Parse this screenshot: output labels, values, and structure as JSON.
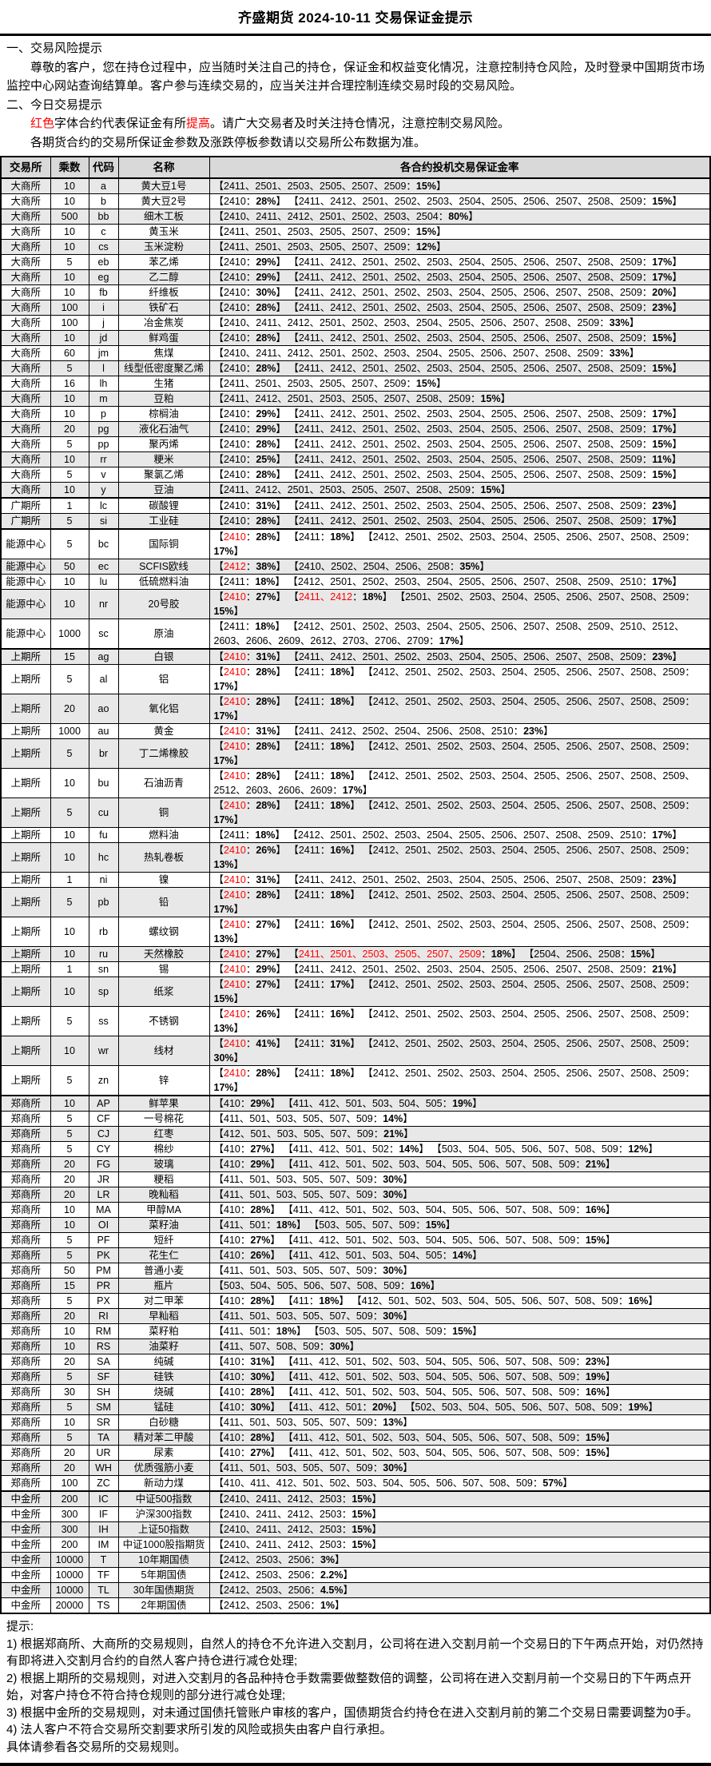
{
  "title": "齐盛期货 2024-10-11 交易保证金提示",
  "colors": {
    "red_highlight": "#FF0000",
    "header_bg": "#D9D9D9",
    "stripe_bg": "#E8E8E8"
  },
  "sections": {
    "s1_head": "一、交易风险提示",
    "s1_p1": "尊敬的客户，您在持仓过程中，应当随时关注自己的持仓，保证金和权益变化情况，注意控制持仓风险，及时登录中国期货市场监控中心网站查询结算单。客户参与连续交易的，应当关注并合理控制连续交易时段的交易风险。",
    "s2_head": "二、今日交易提示",
    "s2_p1": "{r}红色{/r}字体合约代表保证金有所{r}提高{/r}。请广大交易者及时关注持仓情况，注意控制交易风险。",
    "s2_p2": "各期货合约的交易所保证金参数及涨跌停板参数请以交易所公布数据为准。"
  },
  "table": {
    "headers": [
      "交易所",
      "乘数",
      "代码",
      "名称",
      "各合约投机交易保证金率"
    ],
    "rows": [
      {
        "exchange": "大商所",
        "multiplier": "10",
        "code": "a",
        "name": "黄大豆1号",
        "margin": "【2411、2501、2503、2505、2507、2509：{b}15%{/b}】"
      },
      {
        "exchange": "大商所",
        "multiplier": "10",
        "code": "b",
        "name": "黄大豆2号",
        "margin": "【2410：{b}28%{/b}】 【2411、2412、2501、2502、2503、2504、2505、2506、2507、2508、2509：{b}15%{/b}】"
      },
      {
        "exchange": "大商所",
        "multiplier": "500",
        "code": "bb",
        "name": "细木工板",
        "margin": "【2410、2411、2412、2501、2502、2503、2504：{b}80%{/b}】"
      },
      {
        "exchange": "大商所",
        "multiplier": "10",
        "code": "c",
        "name": "黄玉米",
        "margin": "【2411、2501、2503、2505、2507、2509：{b}15%{/b}】"
      },
      {
        "exchange": "大商所",
        "multiplier": "10",
        "code": "cs",
        "name": "玉米淀粉",
        "margin": "【2411、2501、2503、2505、2507、2509：{b}12%{/b}】"
      },
      {
        "exchange": "大商所",
        "multiplier": "5",
        "code": "eb",
        "name": "苯乙烯",
        "margin": "【2410：{b}29%{/b}】 【2411、2412、2501、2502、2503、2504、2505、2506、2507、2508、2509：{b}17%{/b}】"
      },
      {
        "exchange": "大商所",
        "multiplier": "10",
        "code": "eg",
        "name": "乙二醇",
        "margin": "【2410：{b}29%{/b}】 【2411、2412、2501、2502、2503、2504、2505、2506、2507、2508、2509：{b}17%{/b}】"
      },
      {
        "exchange": "大商所",
        "multiplier": "10",
        "code": "fb",
        "name": "纤维板",
        "margin": "【2410：{b}30%{/b}】 【2411、2412、2501、2502、2503、2504、2505、2506、2507、2508、2509：{b}20%{/b}】"
      },
      {
        "exchange": "大商所",
        "multiplier": "100",
        "code": "i",
        "name": "铁矿石",
        "margin": "【2410：{b}28%{/b}】 【2411、2412、2501、2502、2503、2504、2505、2506、2507、2508、2509：{b}23%{/b}】"
      },
      {
        "exchange": "大商所",
        "multiplier": "100",
        "code": "j",
        "name": "冶金焦炭",
        "margin": "【2410、2411、2412、2501、2502、2503、2504、2505、2506、2507、2508、2509：{b}33%{/b}】"
      },
      {
        "exchange": "大商所",
        "multiplier": "10",
        "code": "jd",
        "name": "鲜鸡蛋",
        "margin": "【2410：{b}28%{/b}】 【2411、2412、2501、2502、2503、2504、2505、2506、2507、2508、2509：{b}15%{/b}】"
      },
      {
        "exchange": "大商所",
        "multiplier": "60",
        "code": "jm",
        "name": "焦煤",
        "margin": "【2410、2411、2412、2501、2502、2503、2504、2505、2506、2507、2508、2509：{b}33%{/b}】"
      },
      {
        "exchange": "大商所",
        "multiplier": "5",
        "code": "l",
        "name": "线型低密度聚乙烯",
        "margin": "【2410：{b}28%{/b}】 【2411、2412、2501、2502、2503、2504、2505、2506、2507、2508、2509：{b}15%{/b}】"
      },
      {
        "exchange": "大商所",
        "multiplier": "16",
        "code": "lh",
        "name": "生猪",
        "margin": "【2411、2501、2503、2505、2507、2509：{b}15%{/b}】"
      },
      {
        "exchange": "大商所",
        "multiplier": "10",
        "code": "m",
        "name": "豆粕",
        "margin": "【2411、2412、2501、2503、2505、2507、2508、2509：{b}15%{/b}】"
      },
      {
        "exchange": "大商所",
        "multiplier": "10",
        "code": "p",
        "name": "棕榈油",
        "margin": "【2410：{b}29%{/b}】 【2411、2412、2501、2502、2503、2504、2505、2506、2507、2508、2509：{b}17%{/b}】"
      },
      {
        "exchange": "大商所",
        "multiplier": "20",
        "code": "pg",
        "name": "液化石油气",
        "margin": "【2410：{b}29%{/b}】 【2411、2412、2501、2502、2503、2504、2505、2506、2507、2508、2509：{b}17%{/b}】"
      },
      {
        "exchange": "大商所",
        "multiplier": "5",
        "code": "pp",
        "name": "聚丙烯",
        "margin": "【2410：{b}28%{/b}】 【2411、2412、2501、2502、2503、2504、2505、2506、2507、2508、2509：{b}15%{/b}】"
      },
      {
        "exchange": "大商所",
        "multiplier": "10",
        "code": "rr",
        "name": "粳米",
        "margin": "【2410：{b}25%{/b}】 【2411、2412、2501、2502、2503、2504、2505、2506、2507、2508、2509：{b}11%{/b}】"
      },
      {
        "exchange": "大商所",
        "multiplier": "5",
        "code": "v",
        "name": "聚氯乙烯",
        "margin": "【2410：{b}28%{/b}】 【2411、2412、2501、2502、2503、2504、2505、2506、2507、2508、2509：{b}15%{/b}】"
      },
      {
        "exchange": "大商所",
        "multiplier": "10",
        "code": "y",
        "name": "豆油",
        "margin": "【2411、2412、2501、2503、2505、2507、2508、2509：{b}15%{/b}】"
      },
      {
        "exchange": "广期所",
        "multiplier": "1",
        "code": "lc",
        "name": "碳酸锂",
        "margin": "【2410：{b}31%{/b}】 【2411、2412、2501、2502、2503、2504、2505、2506、2507、2508、2509：{b}23%{/b}】"
      },
      {
        "exchange": "广期所",
        "multiplier": "5",
        "code": "si",
        "name": "工业硅",
        "margin": "【2410：{b}28%{/b}】 【2411、2412、2501、2502、2503、2504、2505、2506、2507、2508、2509：{b}17%{/b}】"
      },
      {
        "exchange": "能源中心",
        "multiplier": "5",
        "code": "bc",
        "name": "国际铜",
        "margin": "【{r}2410{/r}：{b}28%{/b}】 【2411：{b}18%{/b}】 【2412、2501、2502、2503、2504、2505、2506、2507、2508、2509：{b}17%{/b}】"
      },
      {
        "exchange": "能源中心",
        "multiplier": "50",
        "code": "ec",
        "name": "SCFIS欧线",
        "margin": "【{r}2412{/r}：{b}38%{/b}】 【2410、2502、2504、2506、2508：{b}35%{/b}】"
      },
      {
        "exchange": "能源中心",
        "multiplier": "10",
        "code": "lu",
        "name": "低硫燃料油",
        "margin": "【2411：{b}18%{/b}】 【2412、2501、2502、2503、2504、2505、2506、2507、2508、2509、2510：{b}17%{/b}】"
      },
      {
        "exchange": "能源中心",
        "multiplier": "10",
        "code": "nr",
        "name": "20号胶",
        "margin": "【{r}2410{/r}：{b}27%{/b}】 【{r}2411、2412{/r}：{b}18%{/b}】 【2501、2502、2503、2504、2505、2506、2507、2508、2509：{b}15%{/b}】"
      },
      {
        "exchange": "能源中心",
        "multiplier": "1000",
        "code": "sc",
        "name": "原油",
        "margin": "【2411：{b}18%{/b}】 【2412、2501、2502、2503、2504、2505、2506、2507、2508、2509、2510、2512、2603、2606、2609、2612、2703、2706、2709：{b}17%{/b}】"
      },
      {
        "exchange": "上期所",
        "multiplier": "15",
        "code": "ag",
        "name": "白银",
        "margin": "【{r}2410{/r}：{b}31%{/b}】 【2411、2412、2501、2502、2503、2504、2505、2506、2507、2508、2509：{b}23%{/b}】"
      },
      {
        "exchange": "上期所",
        "multiplier": "5",
        "code": "al",
        "name": "铝",
        "margin": "【{r}2410{/r}：{b}28%{/b}】 【2411：{b}18%{/b}】 【2412、2501、2502、2503、2504、2505、2506、2507、2508、2509：{b}17%{/b}】"
      },
      {
        "exchange": "上期所",
        "multiplier": "20",
        "code": "ao",
        "name": "氧化铝",
        "margin": "【{r}2410{/r}：{b}28%{/b}】 【2411：{b}18%{/b}】 【2412、2501、2502、2503、2504、2505、2506、2507、2508、2509：{b}17%{/b}】"
      },
      {
        "exchange": "上期所",
        "multiplier": "1000",
        "code": "au",
        "name": "黄金",
        "margin": "【{r}2410{/r}：{b}31%{/b}】 【2411、2412、2502、2504、2506、2508、2510：{b}23%{/b}】"
      },
      {
        "exchange": "上期所",
        "multiplier": "5",
        "code": "br",
        "name": "丁二烯橡胶",
        "margin": "【{r}2410{/r}：{b}28%{/b}】 【2411：{b}18%{/b}】 【2412、2501、2502、2503、2504、2505、2506、2507、2508、2509：{b}17%{/b}】"
      },
      {
        "exchange": "上期所",
        "multiplier": "10",
        "code": "bu",
        "name": "石油沥青",
        "margin": "【{r}2410{/r}：{b}28%{/b}】 【2411：{b}18%{/b}】 【2412、2501、2502、2503、2504、2505、2506、2507、2508、2509、2512、2603、2606、2609：{b}17%{/b}】"
      },
      {
        "exchange": "上期所",
        "multiplier": "5",
        "code": "cu",
        "name": "铜",
        "margin": "【{r}2410{/r}：{b}28%{/b}】 【2411：{b}18%{/b}】 【2412、2501、2502、2503、2504、2505、2506、2507、2508、2509：{b}17%{/b}】"
      },
      {
        "exchange": "上期所",
        "multiplier": "10",
        "code": "fu",
        "name": "燃料油",
        "margin": "【2411：{b}18%{/b}】 【2412、2501、2502、2503、2504、2505、2506、2507、2508、2509、2510：{b}17%{/b}】"
      },
      {
        "exchange": "上期所",
        "multiplier": "10",
        "code": "hc",
        "name": "热轧卷板",
        "margin": "【{r}2410{/r}：{b}26%{/b}】 【2411：{b}16%{/b}】 【2412、2501、2502、2503、2504、2505、2506、2507、2508、2509：{b}13%{/b}】"
      },
      {
        "exchange": "上期所",
        "multiplier": "1",
        "code": "ni",
        "name": "镍",
        "margin": "【{r}2410{/r}：{b}31%{/b}】 【2411、2412、2501、2502、2503、2504、2505、2506、2507、2508、2509：{b}23%{/b}】"
      },
      {
        "exchange": "上期所",
        "multiplier": "5",
        "code": "pb",
        "name": "铅",
        "margin": "【{r}2410{/r}：{b}28%{/b}】 【2411：{b}18%{/b}】 【2412、2501、2502、2503、2504、2505、2506、2507、2508、2509：{b}17%{/b}】"
      },
      {
        "exchange": "上期所",
        "multiplier": "10",
        "code": "rb",
        "name": "螺纹钢",
        "margin": "【{r}2410{/r}：{b}27%{/b}】 【2411：{b}16%{/b}】 【2412、2501、2502、2503、2504、2505、2506、2507、2508、2509：{b}13%{/b}】"
      },
      {
        "exchange": "上期所",
        "multiplier": "10",
        "code": "ru",
        "name": "天然橡胶",
        "margin": "【{r}2410{/r}：{b}27%{/b}】 【{r}2411、2501、2503、2505、2507、2509{/r}：{b}18%{/b}】 【2504、2506、2508：{b}15%{/b}】"
      },
      {
        "exchange": "上期所",
        "multiplier": "1",
        "code": "sn",
        "name": "锡",
        "margin": "【{r}2410{/r}：{b}29%{/b}】 【2411、2412、2501、2502、2503、2504、2505、2506、2507、2508、2509：{b}21%{/b}】"
      },
      {
        "exchange": "上期所",
        "multiplier": "10",
        "code": "sp",
        "name": "纸浆",
        "margin": "【{r}2410{/r}：{b}27%{/b}】 【2411：{b}17%{/b}】 【2412、2501、2502、2503、2504、2505、2506、2507、2508、2509：{b}15%{/b}】"
      },
      {
        "exchange": "上期所",
        "multiplier": "5",
        "code": "ss",
        "name": "不锈钢",
        "margin": "【{r}2410{/r}：{b}26%{/b}】 【2411：{b}16%{/b}】 【2412、2501、2502、2503、2504、2505、2506、2507、2508、2509：{b}13%{/b}】"
      },
      {
        "exchange": "上期所",
        "multiplier": "10",
        "code": "wr",
        "name": "线材",
        "margin": "【{r}2410{/r}：{b}41%{/b}】 【2411：{b}31%{/b}】 【2412、2501、2502、2503、2504、2505、2506、2507、2508、2509：{b}30%{/b}】"
      },
      {
        "exchange": "上期所",
        "multiplier": "5",
        "code": "zn",
        "name": "锌",
        "margin": "【{r}2410{/r}：{b}28%{/b}】 【2411：{b}18%{/b}】 【2412、2501、2502、2503、2504、2505、2506、2507、2508、2509：{b}17%{/b}】"
      },
      {
        "exchange": "郑商所",
        "multiplier": "10",
        "code": "AP",
        "name": "鲜苹果",
        "margin": "【410：{b}29%{/b}】 【411、412、501、503、504、505：{b}19%{/b}】"
      },
      {
        "exchange": "郑商所",
        "multiplier": "5",
        "code": "CF",
        "name": "一号棉花",
        "margin": "【411、501、503、505、507、509：{b}14%{/b}】"
      },
      {
        "exchange": "郑商所",
        "multiplier": "5",
        "code": "CJ",
        "name": "红枣",
        "margin": "【412、501、503、505、507、509：{b}21%{/b}】"
      },
      {
        "exchange": "郑商所",
        "multiplier": "5",
        "code": "CY",
        "name": "棉纱",
        "margin": "【410：{b}27%{/b}】 【411、412、501、502：{b}14%{/b}】 【503、504、505、506、507、508、509：{b}12%{/b}】"
      },
      {
        "exchange": "郑商所",
        "multiplier": "20",
        "code": "FG",
        "name": "玻璃",
        "margin": "【410：{b}29%{/b}】 【411、412、501、502、503、504、505、506、507、508、509：{b}21%{/b}】"
      },
      {
        "exchange": "郑商所",
        "multiplier": "20",
        "code": "JR",
        "name": "粳稻",
        "margin": "【411、501、503、505、507、509：{b}30%{/b}】"
      },
      {
        "exchange": "郑商所",
        "multiplier": "20",
        "code": "LR",
        "name": "晚籼稻",
        "margin": "【411、501、503、505、507、509：{b}30%{/b}】"
      },
      {
        "exchange": "郑商所",
        "multiplier": "10",
        "code": "MA",
        "name": "甲醇MA",
        "margin": "【410：{b}28%{/b}】 【411、412、501、502、503、504、505、506、507、508、509：{b}16%{/b}】"
      },
      {
        "exchange": "郑商所",
        "multiplier": "10",
        "code": "OI",
        "name": "菜籽油",
        "margin": "【411、501：{b}18%{/b}】 【503、505、507、509：{b}15%{/b}】"
      },
      {
        "exchange": "郑商所",
        "multiplier": "5",
        "code": "PF",
        "name": "短纤",
        "margin": "【410：{b}27%{/b}】 【411、412、501、502、503、504、505、506、507、508、509：{b}15%{/b}】"
      },
      {
        "exchange": "郑商所",
        "multiplier": "5",
        "code": "PK",
        "name": "花生仁",
        "margin": "【410：{b}26%{/b}】 【411、412、501、503、504、505：{b}14%{/b}】"
      },
      {
        "exchange": "郑商所",
        "multiplier": "50",
        "code": "PM",
        "name": "普通小麦",
        "margin": "【411、501、503、505、507、509：{b}30%{/b}】"
      },
      {
        "exchange": "郑商所",
        "multiplier": "15",
        "code": "PR",
        "name": "瓶片",
        "margin": "【503、504、505、506、507、508、509：{b}16%{/b}】"
      },
      {
        "exchange": "郑商所",
        "multiplier": "5",
        "code": "PX",
        "name": "对二甲苯",
        "margin": "【410：{b}28%{/b}】 【411：{b}18%{/b}】 【412、501、502、503、504、505、506、507、508、509：{b}16%{/b}】"
      },
      {
        "exchange": "郑商所",
        "multiplier": "20",
        "code": "RI",
        "name": "早籼稻",
        "margin": "【411、501、503、505、507、509：{b}30%{/b}】"
      },
      {
        "exchange": "郑商所",
        "multiplier": "10",
        "code": "RM",
        "name": "菜籽粕",
        "margin": "【411、501：{b}18%{/b}】 【503、505、507、508、509：{b}15%{/b}】"
      },
      {
        "exchange": "郑商所",
        "multiplier": "10",
        "code": "RS",
        "name": "油菜籽",
        "margin": "【411、507、508、509：{b}30%{/b}】"
      },
      {
        "exchange": "郑商所",
        "multiplier": "20",
        "code": "SA",
        "name": "纯碱",
        "margin": "【410：{b}31%{/b}】 【411、412、501、502、503、504、505、506、507、508、509：{b}23%{/b}】"
      },
      {
        "exchange": "郑商所",
        "multiplier": "5",
        "code": "SF",
        "name": "硅铁",
        "margin": "【410：{b}30%{/b}】 【411、412、501、502、503、504、505、506、507、508、509：{b}19%{/b}】"
      },
      {
        "exchange": "郑商所",
        "multiplier": "30",
        "code": "SH",
        "name": "烧碱",
        "margin": "【410：{b}28%{/b}】 【411、412、501、502、503、504、505、506、507、508、509：{b}16%{/b}】"
      },
      {
        "exchange": "郑商所",
        "multiplier": "5",
        "code": "SM",
        "name": "锰硅",
        "margin": "【410：{b}30%{/b}】 【411、412、501：{b}20%{/b}】 【502、503、504、505、506、507、508、509：{b}19%{/b}】"
      },
      {
        "exchange": "郑商所",
        "multiplier": "10",
        "code": "SR",
        "name": "白砂糖",
        "margin": "【411、501、503、505、507、509：{b}13%{/b}】"
      },
      {
        "exchange": "郑商所",
        "multiplier": "5",
        "code": "TA",
        "name": "精对苯二甲酸",
        "margin": "【410：{b}28%{/b}】 【411、412、501、502、503、504、505、506、507、508、509：{b}15%{/b}】"
      },
      {
        "exchange": "郑商所",
        "multiplier": "20",
        "code": "UR",
        "name": "尿素",
        "margin": "【410：{b}27%{/b}】 【411、412、501、502、503、504、505、506、507、508、509：{b}15%{/b}】"
      },
      {
        "exchange": "郑商所",
        "multiplier": "20",
        "code": "WH",
        "name": "优质强筋小麦",
        "margin": "【411、501、503、505、507、509：{b}30%{/b}】"
      },
      {
        "exchange": "郑商所",
        "multiplier": "100",
        "code": "ZC",
        "name": "新动力煤",
        "margin": "【410、411、412、501、502、503、504、505、506、507、508、509：{b}57%{/b}】"
      },
      {
        "exchange": "中金所",
        "multiplier": "200",
        "code": "IC",
        "name": "中证500指数",
        "margin": "【2410、2411、2412、2503：{b}15%{/b}】"
      },
      {
        "exchange": "中金所",
        "multiplier": "300",
        "code": "IF",
        "name": "沪深300指数",
        "margin": "【2410、2411、2412、2503：{b}15%{/b}】"
      },
      {
        "exchange": "中金所",
        "multiplier": "300",
        "code": "IH",
        "name": "上证50指数",
        "margin": "【2410、2411、2412、2503：{b}15%{/b}】"
      },
      {
        "exchange": "中金所",
        "multiplier": "200",
        "code": "IM",
        "name": "中证1000股指期货",
        "margin": "【2410、2411、2412、2503：{b}15%{/b}】"
      },
      {
        "exchange": "中金所",
        "multiplier": "10000",
        "code": "T",
        "name": "10年期国债",
        "margin": "【2412、2503、2506：{b}3%{/b}】"
      },
      {
        "exchange": "中金所",
        "multiplier": "10000",
        "code": "TF",
        "name": "5年期国债",
        "margin": "【2412、2503、2506：{b}2.2%{/b}】"
      },
      {
        "exchange": "中金所",
        "multiplier": "10000",
        "code": "TL",
        "name": "30年国债期货",
        "margin": "【2412、2503、2506：{b}4.5%{/b}】"
      },
      {
        "exchange": "中金所",
        "multiplier": "20000",
        "code": "TS",
        "name": "2年期国债",
        "margin": "【2412、2503、2506：{b}1%{/b}】"
      }
    ]
  },
  "footer": {
    "head": "提示:",
    "items": [
      "1) 根据郑商所、大商所的交易规则，自然人的持仓不允许进入交割月，公司将在进入交割月前一个交易日的下午两点开始，对仍然持有即将进入交割月合约的自然人客户持仓进行减仓处理;",
      "2) 根据上期所的交易规则，对进入交割月的各品种持仓手数需要做整数倍的调整，公司将在进入交割月前一个交易日的下午两点开始，对客户持仓不符合持仓规则的部分进行减仓处理;",
      "3) 根据中金所的交易规则，对未通过国债托管账户审核的客户，国债期货合约持仓在进入交割月前的第二个交易日需要调整为0手。",
      "4) 法人客户不符合交易所交割要求所引发的风险或损失由客户自行承担。"
    ],
    "tail": "具体请参看各交易所的交易规则。"
  }
}
